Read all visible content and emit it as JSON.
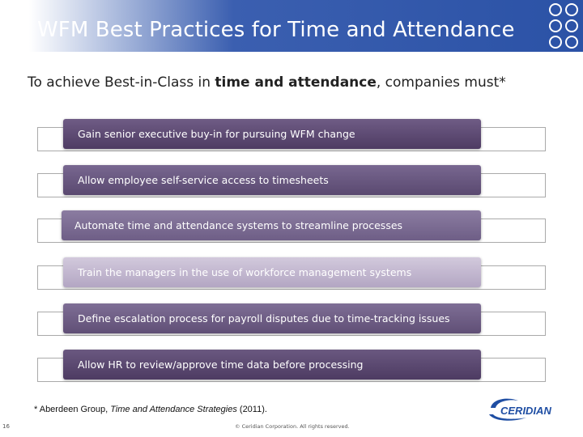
{
  "header": {
    "title": "WFM Best Practices for Time and Attendance"
  },
  "intro": {
    "prefix": "To achieve Best-in-Class in ",
    "emphasis": "time and attendance",
    "suffix": ", companies must*"
  },
  "practices": [
    "Gain senior executive buy-in for pursuing WFM change",
    "Allow employee self-service access to timesheets",
    "Automate time and attendance systems to streamline processes",
    "Train the managers in the use of workforce management systems",
    "Define escalation process for payroll disputes due to time-tracking issues",
    "Allow HR to review/approve time data before processing"
  ],
  "footnote": {
    "prefix": "* Aberdeen Group, ",
    "title": "Time and Attendance Strategies",
    "suffix": " (2011)."
  },
  "footer": {
    "page_number": "16",
    "copyright": "© Ceridian Corporation. All rights reserved."
  },
  "logo": {
    "text": "CERIDIAN",
    "icon": "ceridian-swoosh-logo"
  },
  "colors": {
    "header_blue": "#2b52a6",
    "bar_dark_purple": "#5e4a72",
    "bar_light_purple": "#c2b6cf",
    "logo_blue": "#1f4ea3"
  }
}
